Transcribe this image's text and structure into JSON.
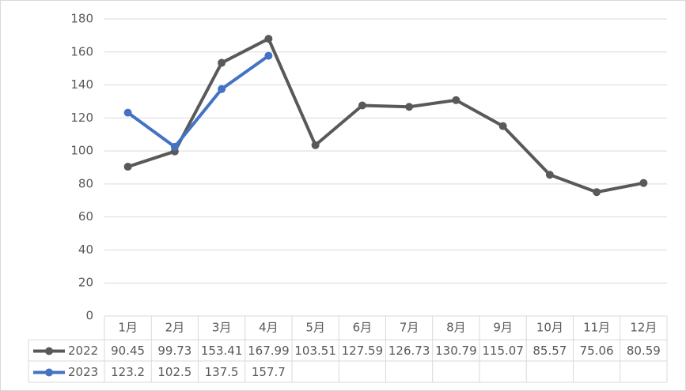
{
  "chart_data": {
    "type": "line",
    "categories": [
      "1月",
      "2月",
      "3月",
      "4月",
      "5月",
      "6月",
      "7月",
      "8月",
      "9月",
      "10月",
      "11月",
      "12月"
    ],
    "series": [
      {
        "name": "2022",
        "color": "#595959",
        "values": [
          90.45,
          99.73,
          153.41,
          167.99,
          103.51,
          127.59,
          126.73,
          130.79,
          115.07,
          85.57,
          75.06,
          80.59
        ]
      },
      {
        "name": "2023",
        "color": "#4472c4",
        "values": [
          123.2,
          102.5,
          137.5,
          157.7,
          null,
          null,
          null,
          null,
          null,
          null,
          null,
          null
        ]
      }
    ],
    "ylim": [
      0,
      180
    ],
    "yticks": [
      0,
      20,
      40,
      60,
      80,
      100,
      120,
      140,
      160,
      180
    ],
    "grid": true,
    "data_table": true
  }
}
